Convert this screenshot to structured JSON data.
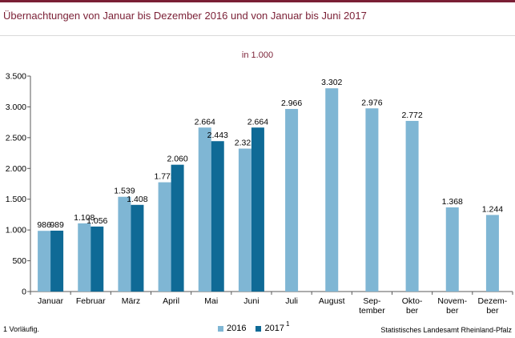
{
  "title": "Übernachtungen von Januar bis Dezember 2016 und von Januar bis Juni 2017",
  "unit_label": "in 1.000",
  "footnote": "1 Vorläufig.",
  "source": "Statistisches Landesamt Rheinland-Pfalz",
  "colors": {
    "accent": "#7a1f35",
    "series_2016": "#7fb6d4",
    "series_2017": "#0f6a96",
    "axis": "#595959",
    "grid": "#d9d9d9"
  },
  "legend": [
    {
      "label": "2016",
      "superscript": "",
      "color": "#7fb6d4"
    },
    {
      "label": "2017",
      "superscript": "1",
      "color": "#0f6a96"
    }
  ],
  "chart_data": {
    "type": "bar",
    "categories": [
      [
        "Januar"
      ],
      [
        "Februar"
      ],
      [
        "März"
      ],
      [
        "April"
      ],
      [
        "Mai"
      ],
      [
        "Juni"
      ],
      [
        "Juli"
      ],
      [
        "August"
      ],
      [
        "Sep-",
        "tember"
      ],
      [
        "Okto-",
        "ber"
      ],
      [
        "Novem-",
        "ber"
      ],
      [
        "Dezem-",
        "ber"
      ]
    ],
    "series": [
      {
        "name": "2016",
        "values": [
          986,
          1108,
          1539,
          1775,
          2664,
          2322,
          2966,
          3302,
          2976,
          2772,
          1368,
          1244
        ],
        "labels": [
          "986",
          "1.108",
          "1.539",
          "1.775",
          "2.664",
          "2.322",
          "2.966",
          "3.302",
          "2.976",
          "2.772",
          "1.368",
          "1.244"
        ]
      },
      {
        "name": "2017",
        "values": [
          989,
          1056,
          1408,
          2060,
          2443,
          2664,
          null,
          null,
          null,
          null,
          null,
          null
        ],
        "labels": [
          "989",
          "1.056",
          "1.408",
          "2.060",
          "2.443",
          "2.664",
          "",
          "",
          "",
          "",
          "",
          ""
        ]
      }
    ],
    "yticks": [
      0,
      500,
      1000,
      1500,
      2000,
      2500,
      3000,
      3500
    ],
    "ytick_labels": [
      "0",
      "500",
      "1.000",
      "1.500",
      "2.000",
      "2.500",
      "3.000",
      "3.500"
    ],
    "ylim": [
      0,
      3500
    ],
    "grid": false
  }
}
